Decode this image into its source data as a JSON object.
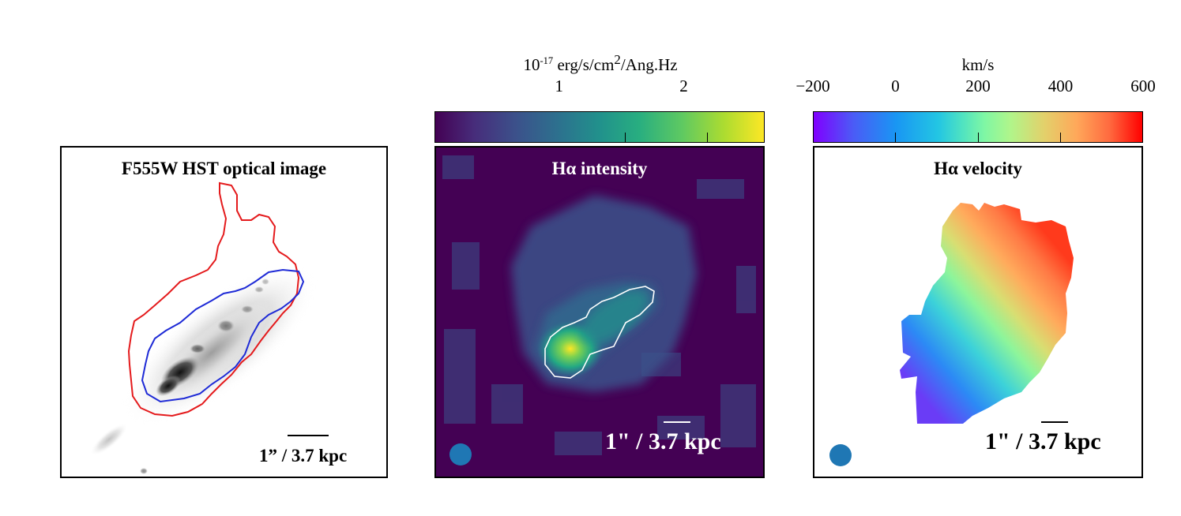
{
  "panels": {
    "optical": {
      "title": "F555W HST optical image",
      "scale_label": "1” / 3.7 kpc"
    },
    "intensity": {
      "title": "Hα intensity",
      "scale_label": "1\" / 3.7 kpc",
      "colorbar": {
        "unit_prefix": "10",
        "unit_exp": "-17",
        "unit_mid": " erg/s/cm",
        "unit_exp2": "2",
        "unit_suffix": "/Ang.Hz",
        "ticks": [
          "1",
          "2"
        ],
        "tick_values": [
          1,
          2
        ],
        "range": [
          0,
          2.65
        ],
        "colormap": "viridis"
      }
    },
    "velocity": {
      "title": "Hα velocity",
      "scale_label": "1\" / 3.7 kpc",
      "colorbar": {
        "unit": "km/s",
        "ticks": [
          "−200",
          "0",
          "200",
          "400",
          "600"
        ],
        "tick_values": [
          -200,
          0,
          200,
          400,
          600
        ],
        "range": [
          -200,
          600
        ],
        "colormap": "rainbow"
      }
    }
  },
  "colors": {
    "outer_contour": "#e41a1c",
    "inner_contour": "#1f2bd6",
    "intensity_contour": "#ffffff",
    "beam": "#1f77b4",
    "viridis_dark": "#440154",
    "viridis_bright": "#fde725"
  }
}
